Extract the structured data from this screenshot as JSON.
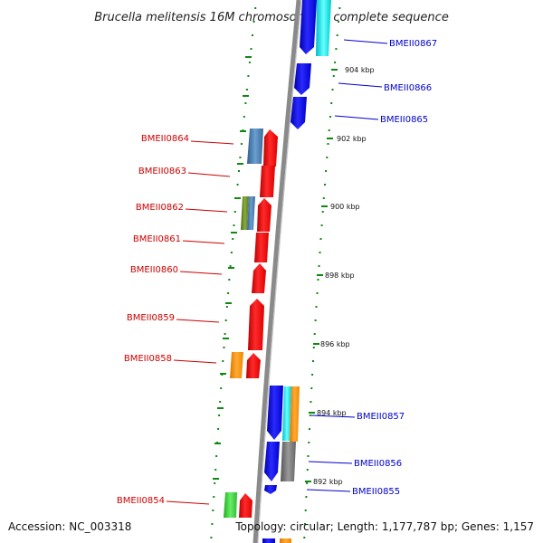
{
  "title": "Brucella melitensis 16M chromosome II, complete sequence",
  "footer": {
    "accession": "Accession: NC_003318",
    "summary": "Topology: circular; Length: 1,177,787 bp; Genes: 1,157"
  },
  "colors": {
    "backbone": "#8a8a8a",
    "tick": "#118811",
    "left_label": "#cc0000",
    "right_label": "#0000cc"
  },
  "ticks": [
    "904 kbp",
    "902 kbp",
    "900 kbp",
    "898 kbp",
    "896 kbp",
    "894 kbp",
    "892 kbp"
  ],
  "left_labels": [
    "BMEII0864",
    "BMEII0863",
    "BMEII0862",
    "BMEII0861",
    "BMEII0860",
    "BMEII0859",
    "BMEII0858",
    "BMEII0854"
  ],
  "right_labels": [
    "BMEII0867",
    "BMEII0866",
    "BMEII0865",
    "BMEII0857",
    "BMEII0856",
    "BMEII0855"
  ]
}
